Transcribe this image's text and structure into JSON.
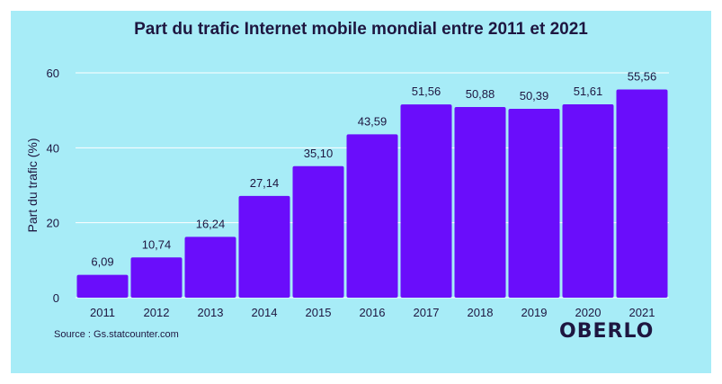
{
  "source": "Source : Gs.statcounter.com",
  "brand": "OBERLO",
  "colors": {
    "background": "#a7ecf7",
    "bar": "#6a0dfb",
    "text": "#1e1640",
    "grid": "#ffffff"
  },
  "chart_data": {
    "type": "bar",
    "title": "Part du trafic Internet mobile mondial entre 2011 et 2021",
    "xlabel": "",
    "ylabel": "Part du trafic (%)",
    "ylim": [
      0,
      60
    ],
    "yticks": [
      0,
      20,
      40,
      60
    ],
    "grid": true,
    "categories": [
      "2011",
      "2012",
      "2013",
      "2014",
      "2015",
      "2016",
      "2017",
      "2018",
      "2019",
      "2020",
      "2021"
    ],
    "values": [
      6.09,
      10.74,
      16.24,
      27.14,
      35.1,
      43.59,
      51.56,
      50.88,
      50.39,
      51.61,
      55.56
    ],
    "data_labels": [
      "6,09",
      "10,74",
      "16,24",
      "27,14",
      "35,10",
      "43,59",
      "51,56",
      "50,88",
      "50,39",
      "51,61",
      "55,56"
    ]
  }
}
